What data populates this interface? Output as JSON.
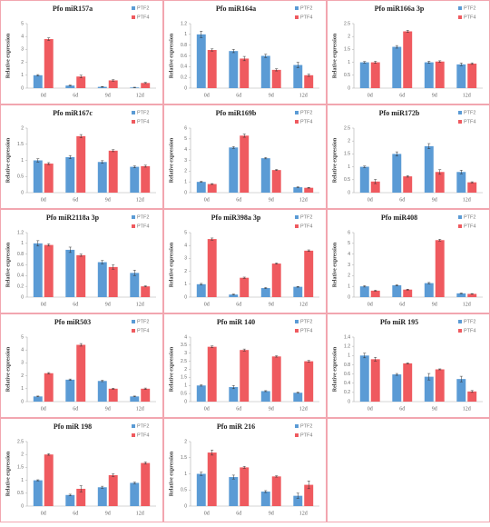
{
  "chart_data": [
    {
      "type": "bar",
      "title": "Pfo miR157a",
      "y_label": "Relative expression",
      "categories": [
        "0d",
        "6d",
        "9d",
        "12d"
      ],
      "ylim": [
        0,
        5
      ],
      "yticks": [
        0,
        1,
        2,
        3,
        4,
        5
      ],
      "series": [
        {
          "name": "PTF2",
          "color": "#5b9bd5",
          "values": [
            1,
            0.2,
            0.1,
            0.05
          ],
          "errors": [
            0.05,
            0.03,
            0.02,
            0.02
          ]
        },
        {
          "name": "PTF4",
          "color": "#ef5a5f",
          "values": [
            3.8,
            0.9,
            0.6,
            0.4
          ],
          "errors": [
            0.1,
            0.1,
            0.05,
            0.04
          ]
        }
      ]
    },
    {
      "type": "bar",
      "title": "Pfo miR164a",
      "y_label": "Relative expression",
      "categories": [
        "0d",
        "6d",
        "9d",
        "12d"
      ],
      "ylim": [
        0,
        1.2
      ],
      "yticks": [
        0,
        0.2,
        0.4,
        0.6,
        0.8,
        1,
        1.2
      ],
      "series": [
        {
          "name": "PTF2",
          "color": "#5b9bd5",
          "values": [
            1,
            0.69,
            0.6,
            0.43
          ],
          "errors": [
            0.06,
            0.03,
            0.03,
            0.05
          ]
        },
        {
          "name": "PTF4",
          "color": "#ef5a5f",
          "values": [
            0.71,
            0.55,
            0.34,
            0.24
          ],
          "errors": [
            0.02,
            0.04,
            0.02,
            0.02
          ]
        }
      ]
    },
    {
      "type": "bar",
      "title": "Pfo miR166a 3p",
      "y_label": "Relative expression",
      "categories": [
        "0d",
        "6d",
        "9d",
        "12d"
      ],
      "ylim": [
        0,
        2.5
      ],
      "yticks": [
        0,
        0.5,
        1,
        1.5,
        2,
        2.5
      ],
      "series": [
        {
          "name": "PTF2",
          "color": "#5b9bd5",
          "values": [
            1,
            1.6,
            1,
            0.92
          ],
          "errors": [
            0.03,
            0.05,
            0.04,
            0.05
          ]
        },
        {
          "name": "PTF4",
          "color": "#ef5a5f",
          "values": [
            1,
            2.2,
            1.03,
            0.95
          ],
          "errors": [
            0.04,
            0.04,
            0.03,
            0.03
          ]
        }
      ]
    },
    {
      "type": "bar",
      "title": "Pfo miR167c",
      "y_label": "Relative expression",
      "categories": [
        "0d",
        "6d",
        "9d",
        "12d"
      ],
      "ylim": [
        0,
        2
      ],
      "yticks": [
        0,
        0.5,
        1,
        1.5,
        2
      ],
      "series": [
        {
          "name": "PTF2",
          "color": "#5b9bd5",
          "values": [
            1,
            1.1,
            0.95,
            0.8
          ],
          "errors": [
            0.05,
            0.05,
            0.04,
            0.03
          ]
        },
        {
          "name": "PTF4",
          "color": "#ef5a5f",
          "values": [
            0.9,
            1.75,
            1.3,
            0.82
          ],
          "errors": [
            0.03,
            0.05,
            0.03,
            0.03
          ]
        }
      ]
    },
    {
      "type": "bar",
      "title": "Pfo miR169b",
      "y_label": "Relative expression",
      "categories": [
        "0d",
        "6d",
        "9d",
        "12d"
      ],
      "ylim": [
        0,
        6
      ],
      "yticks": [
        0,
        1,
        2,
        3,
        4,
        5,
        6
      ],
      "series": [
        {
          "name": "PTF2",
          "color": "#5b9bd5",
          "values": [
            1,
            4.2,
            3.2,
            0.5
          ],
          "errors": [
            0.05,
            0.08,
            0.06,
            0.04
          ]
        },
        {
          "name": "PTF4",
          "color": "#ef5a5f",
          "values": [
            0.8,
            5.3,
            2.1,
            0.45
          ],
          "errors": [
            0.04,
            0.15,
            0.05,
            0.03
          ]
        }
      ]
    },
    {
      "type": "bar",
      "title": "Pfo miR172b",
      "y_label": "Relative expression",
      "categories": [
        "0d",
        "6d",
        "9d",
        "12d"
      ],
      "ylim": [
        0,
        2.5
      ],
      "yticks": [
        0,
        0.5,
        1,
        1.5,
        2,
        2.5
      ],
      "series": [
        {
          "name": "PTF2",
          "color": "#5b9bd5",
          "values": [
            1,
            1.5,
            1.8,
            0.8
          ],
          "errors": [
            0.03,
            0.08,
            0.1,
            0.07
          ]
        },
        {
          "name": "PTF4",
          "color": "#ef5a5f",
          "values": [
            0.43,
            0.63,
            0.8,
            0.4
          ],
          "errors": [
            0.08,
            0.03,
            0.09,
            0.02
          ]
        }
      ]
    },
    {
      "type": "bar",
      "title": "Pfo miR2118a 3p",
      "y_label": "Relative expression",
      "categories": [
        "0d",
        "6d",
        "9d",
        "12d"
      ],
      "ylim": [
        0,
        1.2
      ],
      "yticks": [
        0,
        0.2,
        0.4,
        0.6,
        0.8,
        1,
        1.2
      ],
      "series": [
        {
          "name": "PTF2",
          "color": "#5b9bd5",
          "values": [
            1,
            0.88,
            0.65,
            0.45
          ],
          "errors": [
            0.05,
            0.05,
            0.03,
            0.05
          ]
        },
        {
          "name": "PTF4",
          "color": "#ef5a5f",
          "values": [
            0.97,
            0.78,
            0.56,
            0.2
          ],
          "errors": [
            0.02,
            0.02,
            0.04,
            0.01
          ]
        }
      ]
    },
    {
      "type": "bar",
      "title": "Pfo miR398a 3p",
      "y_label": "Relative expression",
      "categories": [
        "0d",
        "6d",
        "9d",
        "12d"
      ],
      "ylim": [
        0,
        5
      ],
      "yticks": [
        0,
        1,
        2,
        3,
        4,
        5
      ],
      "series": [
        {
          "name": "PTF2",
          "color": "#5b9bd5",
          "values": [
            1,
            0.2,
            0.7,
            0.8
          ],
          "errors": [
            0.06,
            0.03,
            0.04,
            0.03
          ]
        },
        {
          "name": "PTF4",
          "color": "#ef5a5f",
          "values": [
            4.5,
            1.5,
            2.6,
            3.6
          ],
          "errors": [
            0.08,
            0.05,
            0.04,
            0.06
          ]
        }
      ]
    },
    {
      "type": "bar",
      "title": "Pfo miR408",
      "y_label": "Relative expression",
      "categories": [
        "0d",
        "6d",
        "9d",
        "12d"
      ],
      "ylim": [
        0,
        6
      ],
      "yticks": [
        0,
        1,
        2,
        3,
        4,
        5,
        6
      ],
      "series": [
        {
          "name": "PTF2",
          "color": "#5b9bd5",
          "values": [
            1,
            1.1,
            1.3,
            0.35
          ],
          "errors": [
            0.06,
            0.05,
            0.06,
            0.03
          ]
        },
        {
          "name": "PTF4",
          "color": "#ef5a5f",
          "values": [
            0.6,
            0.7,
            5.3,
            0.3
          ],
          "errors": [
            0.04,
            0.04,
            0.08,
            0.03
          ]
        }
      ]
    },
    {
      "type": "bar",
      "title": "Pfo miR503",
      "y_label": "Relative expression",
      "categories": [
        "0d",
        "6d",
        "9d",
        "12d"
      ],
      "ylim": [
        0,
        5
      ],
      "yticks": [
        0,
        1,
        2,
        3,
        4,
        5
      ],
      "series": [
        {
          "name": "PTF2",
          "color": "#5b9bd5",
          "values": [
            0.4,
            1.7,
            1.6,
            0.4
          ],
          "errors": [
            0.03,
            0.05,
            0.05,
            0.03
          ]
        },
        {
          "name": "PTF4",
          "color": "#ef5a5f",
          "values": [
            2.2,
            4.4,
            1.0,
            1.0
          ],
          "errors": [
            0.05,
            0.1,
            0.04,
            0.05
          ]
        }
      ]
    },
    {
      "type": "bar",
      "title": "Pfo miR 140",
      "y_label": "Relative expression",
      "categories": [
        "0d",
        "6d",
        "9d",
        "12d"
      ],
      "ylim": [
        0,
        4
      ],
      "yticks": [
        0,
        0.5,
        1,
        1.5,
        2,
        2.5,
        3,
        3.5,
        4
      ],
      "series": [
        {
          "name": "PTF2",
          "color": "#5b9bd5",
          "values": [
            1,
            0.9,
            0.65,
            0.55
          ],
          "errors": [
            0.04,
            0.1,
            0.03,
            0.03
          ]
        },
        {
          "name": "PTF4",
          "color": "#ef5a5f",
          "values": [
            3.4,
            3.2,
            2.8,
            2.5
          ],
          "errors": [
            0.05,
            0.06,
            0.04,
            0.05
          ]
        }
      ]
    },
    {
      "type": "bar",
      "title": "Pfo miR 195",
      "y_label": "Relative expression",
      "categories": [
        "0d",
        "6d",
        "9d",
        "12d"
      ],
      "ylim": [
        0,
        1.4
      ],
      "yticks": [
        0,
        0.2,
        0.4,
        0.6,
        0.8,
        1,
        1.2,
        1.4
      ],
      "series": [
        {
          "name": "PTF2",
          "color": "#5b9bd5",
          "values": [
            1,
            0.59,
            0.54,
            0.49
          ],
          "errors": [
            0.05,
            0.02,
            0.07,
            0.06
          ]
        },
        {
          "name": "PTF4",
          "color": "#ef5a5f",
          "values": [
            0.92,
            0.83,
            0.7,
            0.22
          ],
          "errors": [
            0.04,
            0.01,
            0.01,
            0.02
          ]
        }
      ]
    },
    {
      "type": "bar",
      "title": "Pfo miR 198",
      "y_label": "Relative expression",
      "categories": [
        "0d",
        "6d",
        "9d",
        "12d"
      ],
      "ylim": [
        0,
        2.5
      ],
      "yticks": [
        0,
        0.5,
        1,
        1.5,
        2,
        2.5
      ],
      "series": [
        {
          "name": "PTF2",
          "color": "#5b9bd5",
          "values": [
            1,
            0.43,
            0.73,
            0.9
          ],
          "errors": [
            0.02,
            0.03,
            0.04,
            0.03
          ]
        },
        {
          "name": "PTF4",
          "color": "#ef5a5f",
          "values": [
            2,
            0.67,
            1.2,
            1.67
          ],
          "errors": [
            0.03,
            0.12,
            0.05,
            0.04
          ]
        }
      ]
    },
    {
      "type": "bar",
      "title": "Pfo miR 216",
      "y_label": "Relative expression",
      "categories": [
        "0d",
        "6d",
        "9d",
        "12d"
      ],
      "ylim": [
        0,
        2
      ],
      "yticks": [
        0,
        0.5,
        1,
        1.5,
        2
      ],
      "series": [
        {
          "name": "PTF2",
          "color": "#5b9bd5",
          "values": [
            1,
            0.9,
            0.45,
            0.32
          ],
          "errors": [
            0.05,
            0.06,
            0.03,
            0.08
          ]
        },
        {
          "name": "PTF4",
          "color": "#ef5a5f",
          "values": [
            1.66,
            1.2,
            0.92,
            0.66
          ],
          "errors": [
            0.08,
            0.03,
            0.02,
            0.12
          ]
        }
      ]
    }
  ]
}
